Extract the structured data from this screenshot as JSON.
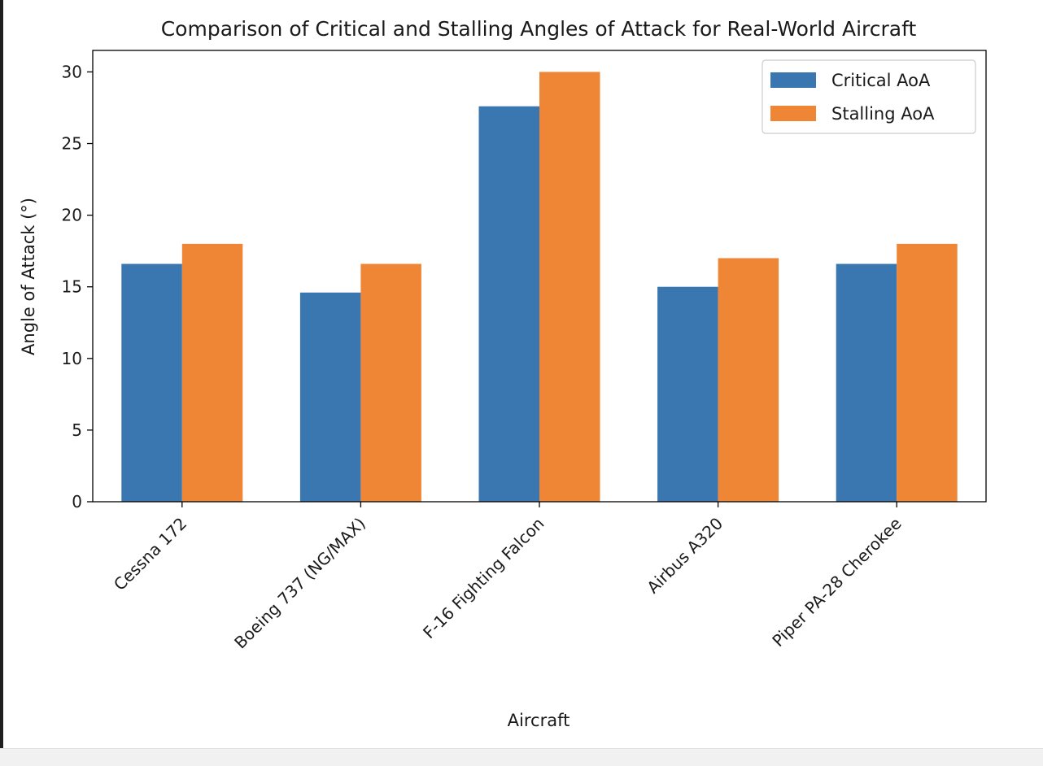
{
  "chart_data": {
    "type": "bar",
    "title": "Comparison of Critical and Stalling Angles of Attack for Real-World Aircraft",
    "xlabel": "Aircraft",
    "ylabel": "Angle of Attack (°)",
    "categories": [
      "Cessna 172",
      "Boeing 737 (NG/MAX)",
      "F-16 Fighting Falcon",
      "Airbus A320",
      "Piper PA-28 Cherokee"
    ],
    "series": [
      {
        "name": "Critical AoA",
        "color": "#3a76af",
        "values": [
          16.6,
          14.6,
          27.6,
          15.0,
          16.6
        ]
      },
      {
        "name": "Stalling AoA",
        "color": "#ee8636",
        "values": [
          18.0,
          16.6,
          30.0,
          17.0,
          18.0
        ]
      }
    ],
    "ylim": [
      0,
      31.5
    ],
    "yticks": [
      0,
      5,
      10,
      15,
      20,
      25,
      30
    ],
    "grid": false,
    "legend": "top-right"
  }
}
